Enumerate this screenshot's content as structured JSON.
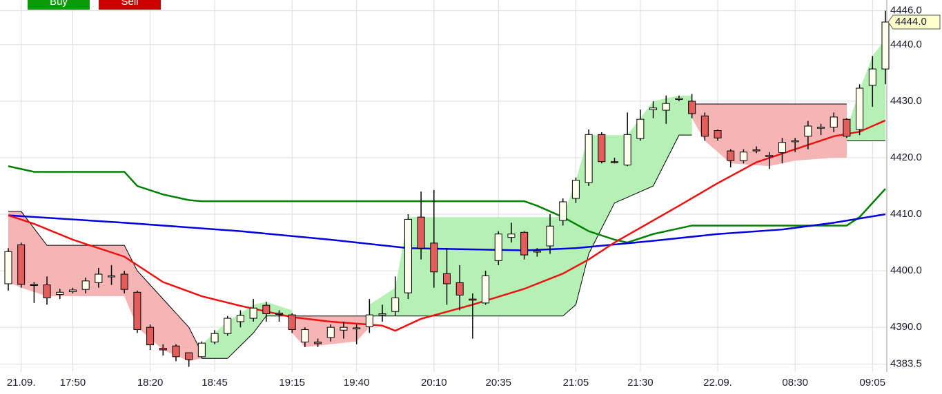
{
  "chart_data": {
    "type": "candlestick",
    "buttons": [
      "Buy",
      "Sell"
    ],
    "button_colors": [
      "#0a9a0a",
      "#cc0000"
    ],
    "ylim": [
      4382.1,
      4447.9
    ],
    "yticks": [
      {
        "value": 4383.5,
        "label": "4383.5"
      },
      {
        "value": 4390,
        "label": "4390.0"
      },
      {
        "value": 4400,
        "label": "4400.0"
      },
      {
        "value": 4410,
        "label": "4410.0"
      },
      {
        "value": 4420,
        "label": "4420.0"
      },
      {
        "value": 4430,
        "label": "4430.0"
      },
      {
        "value": 4440,
        "label": "4440.0"
      },
      {
        "value": 4446,
        "label": "4446.0"
      }
    ],
    "grid": true,
    "last_price": {
      "value": 4444,
      "label": "4444.0"
    },
    "up_color": "#ffffee",
    "down_color": "#e35d5d",
    "categories": [
      null,
      "21.09.",
      null,
      null,
      null,
      "17:50",
      null,
      null,
      null,
      null,
      null,
      "18:20",
      null,
      null,
      null,
      null,
      "18:45",
      null,
      null,
      null,
      null,
      null,
      "19:15",
      null,
      null,
      null,
      null,
      "19:40",
      null,
      null,
      null,
      null,
      null,
      "20:10",
      null,
      null,
      null,
      null,
      "20:35",
      null,
      null,
      null,
      null,
      null,
      "21:05",
      null,
      null,
      null,
      null,
      "21:30",
      null,
      null,
      null,
      null,
      null,
      "22.09.",
      null,
      null,
      null,
      null,
      null,
      "08:30",
      null,
      null,
      null,
      null,
      null,
      "09:05",
      null
    ],
    "open": [
      4397.7,
      4404.6,
      4397.6,
      4397.5,
      4395.8,
      4396.3,
      4396.7,
      4397.9,
      4399,
      4399.4,
      4396.2,
      4390,
      4386.3,
      4386.7,
      4385.5,
      4384.8,
      4387.4,
      4388.9,
      4391,
      4391.6,
      4393.9,
      4392.5,
      4392.2,
      4387.4,
      4387.4,
      4388.2,
      4389.5,
      4389.8,
      4390.1,
      4392.2,
      4392.8,
      4396.1,
      4409.5,
      4404.9,
      4399.5,
      4397.9,
      4395,
      4394.3,
      4401.8,
      4405.9,
      4406.8,
      4403.3,
      4404.4,
      4408.9,
      4412.8,
      4415.6,
      4424.1,
      4419.3,
      4418.7,
      4423.4,
      4428.5,
      4428.4,
      4430.3,
      4430,
      4427.4,
      4424.8,
      4421.2,
      4419.5,
      4421.4,
      4420.2,
      4420.9,
      4422.9,
      4423.8,
      4425.3,
      4425.4,
      4426.8,
      4425,
      4432.8,
      4435.7
    ],
    "high": [
      4404,
      4405,
      4398,
      4399,
      4396.8,
      4397,
      4398.8,
      4400.5,
      4401,
      4400,
      4396.5,
      4390.5,
      4387,
      4387,
      4385.5,
      4387.5,
      4389.5,
      4392,
      4393,
      4395,
      4394.5,
      4393,
      4392.5,
      4390,
      4388,
      4390.5,
      4391,
      4390.5,
      4395,
      4394,
      4399,
      4410,
      4414,
      4414.3,
      4404,
      4401,
      4396,
      4400,
      4407,
      4408.5,
      4407,
      4404,
      4410,
      4412.8,
      4416.5,
      4425,
      4424.5,
      4420,
      4428,
      4428.5,
      4430,
      4431,
      4431,
      4431.3,
      4428,
      4425,
      4421.5,
      4421.5,
      4422,
      4421,
      4423.5,
      4423.5,
      4426.5,
      4426,
      4428,
      4427,
      4433,
      4438,
      4446
    ],
    "low": [
      4396.5,
      4397,
      4394.3,
      4394,
      4395,
      4396,
      4396,
      4397,
      4397.5,
      4396,
      4389,
      4386,
      4385,
      4384,
      4383,
      4384.5,
      4387,
      4388.5,
      4390,
      4391,
      4391,
      4391,
      4389,
      4386.5,
      4386.5,
      4387.5,
      4388,
      4387,
      4389,
      4391,
      4392,
      4395,
      4402,
      4397,
      4394,
      4393,
      4388,
      4394,
      4401,
      4405,
      4402,
      4402.5,
      4403,
      4408,
      4412,
      4415,
      4419,
      4419,
      4418.5,
      4423,
      4427,
      4426,
      4430,
      4427,
      4423,
      4423,
      4418.3,
      4419,
      4420.8,
      4418,
      4419,
      4421,
      4421.5,
      4424,
      4424.5,
      4423.5,
      4424,
      4429,
      4433
    ],
    "close": [
      4403.4,
      4397.6,
      4397.4,
      4395.2,
      4396.2,
      4396.6,
      4398.2,
      4399.4,
      4399.1,
      4396.7,
      4389.6,
      4386.9,
      4386,
      4384.8,
      4384.3,
      4387.2,
      4388.9,
      4391.6,
      4392.1,
      4393.4,
      4392.4,
      4392.3,
      4389.6,
      4389.6,
      4387.1,
      4390,
      4390,
      4389.9,
      4392.2,
      4392.4,
      4395.2,
      4409.1,
      4404,
      4399.8,
      4397.7,
      4395.7,
      4394.8,
      4399.1,
      4406.5,
      4406.5,
      4402.8,
      4403.5,
      4407.9,
      4412.2,
      4416,
      4424.1,
      4419.3,
      4419.2,
      4424.1,
      4426.8,
      4428.8,
      4429.6,
      4430.5,
      4427.8,
      4423.8,
      4423.5,
      4419.5,
      4421,
      4421.2,
      4420.4,
      4422.7,
      4423,
      4425.6,
      4425.4,
      4427.2,
      4423.8,
      4432.3,
      4435.7,
      4444
    ],
    "bands": [
      {
        "color": "#f5b5b5",
        "stop": "upper",
        "x": [
          0,
          1,
          3,
          9,
          10,
          12,
          14,
          15
        ],
        "upper": [
          4410.5,
          4410.5,
          4404.5,
          4404.5,
          4400,
          4395,
          4390,
          4385.5
        ],
        "lower": [
          4398,
          4397,
          4395.5,
          4395.5,
          4390,
          4386,
          4384,
          4384.5
        ]
      },
      {
        "color": "#b5f0b5",
        "stop": "lower",
        "x": [
          15,
          17,
          19,
          20,
          22
        ],
        "upper": [
          4387,
          4391,
          4394,
          4394.5,
          4393
        ],
        "lower": [
          4384.5,
          4384.5,
          4389,
          4392,
          4392
        ]
      },
      {
        "color": "#f5b5b5",
        "stop": "upper",
        "x": [
          22,
          23,
          25,
          27,
          28
        ],
        "upper": [
          4392,
          4392,
          4392,
          4392,
          4392
        ],
        "lower": [
          4389,
          4386.5,
          4387,
          4387.5,
          4390
        ]
      },
      {
        "color": "#b5f0b5",
        "stop": "lower",
        "x": [
          28,
          30,
          31,
          43,
          44,
          45,
          47,
          48,
          50,
          52,
          53
        ],
        "upper": [
          4394,
          4397,
          4409.5,
          4409.5,
          4416,
          4424,
          4424,
          4424,
          4430,
          4431,
          4431
        ],
        "lower": [
          4392,
          4392,
          4392,
          4392,
          4394,
          4403,
          4412,
          4413,
          4415,
          4424,
          4424
        ]
      },
      {
        "color": "#f5b5b5",
        "stop": "upper",
        "x": [
          53,
          54,
          56,
          59,
          61,
          64,
          65
        ],
        "upper": [
          4429.5,
          4429.5,
          4429.5,
          4429.5,
          4429.5,
          4429.5,
          4429.5
        ],
        "lower": [
          4427,
          4423,
          4419,
          4418.5,
          4419.5,
          4420,
          4420
        ]
      },
      {
        "color": "#b5f0b5",
        "stop": "lower",
        "x": [
          65,
          66,
          67,
          68
        ],
        "upper": [
          4425,
          4432,
          4438,
          4441
        ],
        "lower": [
          4423,
          4423,
          4423,
          4423
        ]
      }
    ],
    "lines": [
      {
        "color": "#008000",
        "x": [
          0,
          1,
          2,
          9,
          10,
          12,
          14,
          15,
          40,
          41,
          43,
          45,
          47,
          48,
          50,
          52,
          53,
          65,
          66,
          68
        ],
        "values": [
          4418.5,
          4418,
          4417.5,
          4417.5,
          4415,
          4413.5,
          4412.5,
          4412.3,
          4412.3,
          4411.5,
          4409.5,
          4407,
          4405.5,
          4405,
          4406.5,
          4407.5,
          4408,
          4408,
          4409.5,
          4414.5
        ]
      },
      {
        "color": "#0000e0",
        "x": [
          0,
          9,
          18,
          25,
          31,
          40,
          44,
          50,
          55,
          60,
          64,
          68
        ],
        "values": [
          4409.8,
          4408.5,
          4407,
          4405.5,
          4404,
          4403.6,
          4404,
          4405.3,
          4406.5,
          4407.3,
          4408.5,
          4410
        ]
      },
      {
        "color": "#ee1111",
        "x": [
          0,
          2,
          5,
          9,
          12,
          15,
          18,
          22,
          25,
          29,
          30,
          32,
          36,
          40,
          43,
          45,
          47,
          49,
          52,
          55,
          58,
          61,
          64,
          66,
          68
        ],
        "values": [
          4409.8,
          4408.3,
          4405.5,
          4402.5,
          4398,
          4395.5,
          4393.8,
          4391.8,
          4391,
          4390.3,
          4389.4,
          4391.5,
          4394,
          4396.8,
          4399.5,
          4402,
          4405,
          4407.6,
          4411.5,
          4415.5,
          4419.2,
          4421.5,
          4423.8,
          4424.6,
          4426.6
        ]
      }
    ]
  }
}
